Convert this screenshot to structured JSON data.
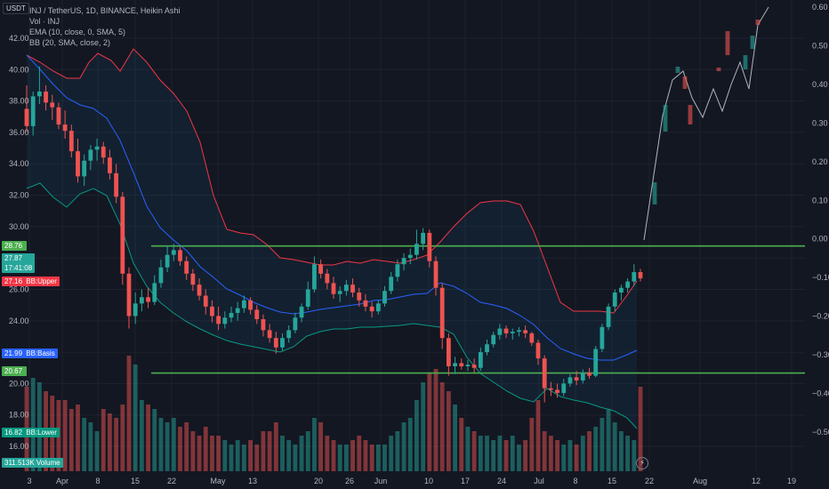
{
  "currency_label": "USDT",
  "legend": {
    "symbol": "INJ / TetherUS, 1D, BINANCE, Heikin Ashi",
    "volume": "Vol · INJ",
    "ema": "EMA (10, close, 0, SMA, 5)",
    "bb": "BB (20, SMA, close, 2)"
  },
  "badges": {
    "price_high": {
      "value": "28.76"
    },
    "price_last": {
      "value": "27.87",
      "sub": "17:41:08"
    },
    "bb_upper": {
      "value": "27.16",
      "label": "BB:Upper"
    },
    "bb_basis": {
      "value": "21.99",
      "label": "BB:Basis"
    },
    "level": {
      "value": "20.67"
    },
    "bb_lower": {
      "value": "16.82",
      "label": "BB:Lower"
    },
    "volume": {
      "value": "311.513K",
      "label": "Volume"
    }
  },
  "colors": {
    "bull": "#26a69a",
    "bear": "#ef5350",
    "bb_upper": "#f23645",
    "bb_lower": "#089981",
    "bb_basis": "#2962ff",
    "support_resistance": "#4caf50",
    "projection": "#b2b5be"
  },
  "chart_data": {
    "type": "candlestick",
    "left_axis": {
      "ticks": [
        "42.00",
        "40.00",
        "38.00",
        "36.00",
        "34.00",
        "32.00",
        "30.00",
        "28.00",
        "26.00",
        "24.00",
        "22.00",
        "20.00",
        "18.00",
        "16.00"
      ],
      "range": [
        15.0,
        43.0
      ]
    },
    "right_axis": {
      "ticks": [
        "0.60",
        "0.50",
        "0.40",
        "0.30",
        "0.20",
        "0.10",
        "0.00",
        "−0.10",
        "−0.20",
        "−0.30",
        "−0.40",
        "−0.50"
      ],
      "range": [
        -0.52,
        0.62
      ]
    },
    "x_ticks": [
      "3",
      "Apr",
      "8",
      "15",
      "22",
      "May",
      "13",
      "20",
      "26",
      "Jun",
      "10",
      "17",
      "24",
      "Jul",
      "8",
      "15",
      "22",
      "Aug",
      "12",
      "19"
    ],
    "horizontal_levels": [
      28.76,
      20.67
    ],
    "candles": [
      [
        37.5,
        39.0,
        36.0,
        36.4
      ],
      [
        36.4,
        38.6,
        35.8,
        38.3
      ],
      [
        38.3,
        40.2,
        37.8,
        38.6
      ],
      [
        38.6,
        39.0,
        37.4,
        37.9
      ],
      [
        37.9,
        38.4,
        36.8,
        37.6
      ],
      [
        37.6,
        37.9,
        36.2,
        36.5
      ],
      [
        36.5,
        37.4,
        35.6,
        36.1
      ],
      [
        36.1,
        36.5,
        34.4,
        34.8
      ],
      [
        34.8,
        35.6,
        32.8,
        33.2
      ],
      [
        33.2,
        34.6,
        32.6,
        34.2
      ],
      [
        34.2,
        35.2,
        33.6,
        34.9
      ],
      [
        34.9,
        35.6,
        34.2,
        35.1
      ],
      [
        35.1,
        35.4,
        34.0,
        34.4
      ],
      [
        34.4,
        34.9,
        33.0,
        33.4
      ],
      [
        33.4,
        34.0,
        31.5,
        31.9
      ],
      [
        31.9,
        32.2,
        26.3,
        27.0
      ],
      [
        27.0,
        27.4,
        23.5,
        24.3
      ],
      [
        24.3,
        25.8,
        23.8,
        25.1
      ],
      [
        25.1,
        26.0,
        24.6,
        25.5
      ],
      [
        25.5,
        26.1,
        24.8,
        25.2
      ],
      [
        25.2,
        26.9,
        25.0,
        26.4
      ],
      [
        26.4,
        27.9,
        26.1,
        27.4
      ],
      [
        27.4,
        28.8,
        27.1,
        28.2
      ],
      [
        28.2,
        28.9,
        27.8,
        28.5
      ],
      [
        28.5,
        28.7,
        27.5,
        27.8
      ],
      [
        27.8,
        28.1,
        26.6,
        27.0
      ],
      [
        27.0,
        27.3,
        25.9,
        26.3
      ],
      [
        26.3,
        26.7,
        25.3,
        25.6
      ],
      [
        25.6,
        26.0,
        24.4,
        24.9
      ],
      [
        24.9,
        25.3,
        23.9,
        24.3
      ],
      [
        24.3,
        24.9,
        23.4,
        23.8
      ],
      [
        23.8,
        24.6,
        23.5,
        24.2
      ],
      [
        24.2,
        24.9,
        23.9,
        24.5
      ],
      [
        24.5,
        25.2,
        24.0,
        24.8
      ],
      [
        24.8,
        25.6,
        24.5,
        25.3
      ],
      [
        25.3,
        25.5,
        24.4,
        24.7
      ],
      [
        24.7,
        25.0,
        23.8,
        24.1
      ],
      [
        24.1,
        24.4,
        23.0,
        23.4
      ],
      [
        23.4,
        23.8,
        22.6,
        22.9
      ],
      [
        22.9,
        23.3,
        21.9,
        22.3
      ],
      [
        22.3,
        23.2,
        22.1,
        22.9
      ],
      [
        22.9,
        23.7,
        22.6,
        23.4
      ],
      [
        23.4,
        24.5,
        23.2,
        24.2
      ],
      [
        24.2,
        25.1,
        23.9,
        24.9
      ],
      [
        24.9,
        26.5,
        24.7,
        26.0
      ],
      [
        26.0,
        28.1,
        25.8,
        27.6
      ],
      [
        27.6,
        27.9,
        26.7,
        27.0
      ],
      [
        27.0,
        27.3,
        26.0,
        26.4
      ],
      [
        26.4,
        26.8,
        25.4,
        25.7
      ],
      [
        25.7,
        26.2,
        25.2,
        25.9
      ],
      [
        25.9,
        26.6,
        25.6,
        26.3
      ],
      [
        26.3,
        26.7,
        25.5,
        25.8
      ],
      [
        25.8,
        26.1,
        24.9,
        25.3
      ],
      [
        25.3,
        25.7,
        24.6,
        24.9
      ],
      [
        24.9,
        25.2,
        24.2,
        24.6
      ],
      [
        24.6,
        25.3,
        24.4,
        25.1
      ],
      [
        25.1,
        26.2,
        24.9,
        25.9
      ],
      [
        25.9,
        27.1,
        25.7,
        26.8
      ],
      [
        26.8,
        27.9,
        26.5,
        27.6
      ],
      [
        27.6,
        28.3,
        27.2,
        28.0
      ],
      [
        28.0,
        28.6,
        27.6,
        28.2
      ],
      [
        28.2,
        29.8,
        27.9,
        28.9
      ],
      [
        28.9,
        29.9,
        28.5,
        29.6
      ],
      [
        29.6,
        29.8,
        27.4,
        27.8
      ],
      [
        27.8,
        28.1,
        25.6,
        26.1
      ],
      [
        26.1,
        26.4,
        22.2,
        22.9
      ],
      [
        22.9,
        23.2,
        20.5,
        21.1
      ],
      [
        21.1,
        21.7,
        20.6,
        21.3
      ],
      [
        21.3,
        21.6,
        20.9,
        21.1
      ],
      [
        21.1,
        21.5,
        20.8,
        21.2
      ],
      [
        21.2,
        21.6,
        20.7,
        21.0
      ],
      [
        21.0,
        22.3,
        20.8,
        22.0
      ],
      [
        22.0,
        22.8,
        21.8,
        22.5
      ],
      [
        22.5,
        23.3,
        22.3,
        23.1
      ],
      [
        23.1,
        23.8,
        22.8,
        23.5
      ],
      [
        23.5,
        23.7,
        22.9,
        23.2
      ],
      [
        23.2,
        23.5,
        22.8,
        23.3
      ],
      [
        23.3,
        23.6,
        23.0,
        23.4
      ],
      [
        23.4,
        23.7,
        22.9,
        23.2
      ],
      [
        23.2,
        23.3,
        22.4,
        22.6
      ],
      [
        22.6,
        22.8,
        21.2,
        21.6
      ],
      [
        21.6,
        21.8,
        18.8,
        19.7
      ],
      [
        19.7,
        20.1,
        19.2,
        19.6
      ],
      [
        19.6,
        20.0,
        19.1,
        19.4
      ],
      [
        19.4,
        20.3,
        19.2,
        20.0
      ],
      [
        20.0,
        20.6,
        19.8,
        20.4
      ],
      [
        20.4,
        20.8,
        19.9,
        20.2
      ],
      [
        20.2,
        20.9,
        20.0,
        20.7
      ],
      [
        20.7,
        21.0,
        20.3,
        20.5
      ],
      [
        20.5,
        22.4,
        20.4,
        22.2
      ],
      [
        22.2,
        23.8,
        22.0,
        23.6
      ],
      [
        23.6,
        25.1,
        23.4,
        24.9
      ],
      [
        24.9,
        26.0,
        24.6,
        25.8
      ],
      [
        25.8,
        26.3,
        25.3,
        26.1
      ],
      [
        26.1,
        26.7,
        25.8,
        26.5
      ],
      [
        26.5,
        27.6,
        26.2,
        27.1
      ],
      [
        27.1,
        27.3,
        26.5,
        26.7
      ]
    ],
    "volume": [
      {
        "value": 0.3,
        "dir": "bear"
      }
    ],
    "projection_line": [
      [
        724,
        270
      ],
      [
        733,
        210
      ],
      [
        745,
        130
      ],
      [
        756,
        90
      ],
      [
        768,
        80
      ],
      [
        778,
        110
      ],
      [
        790,
        132
      ],
      [
        802,
        100
      ],
      [
        812,
        125
      ],
      [
        822,
        95
      ],
      [
        832,
        70
      ],
      [
        842,
        100
      ],
      [
        852,
        28
      ],
      [
        864,
        8
      ]
    ],
    "bb_upper": [
      [
        30,
        62
      ],
      [
        45,
        70
      ],
      [
        60,
        80
      ],
      [
        75,
        88
      ],
      [
        90,
        88
      ],
      [
        100,
        70
      ],
      [
        110,
        60
      ],
      [
        125,
        68
      ],
      [
        135,
        80
      ],
      [
        150,
        55
      ],
      [
        165,
        70
      ],
      [
        180,
        90
      ],
      [
        195,
        105
      ],
      [
        210,
        125
      ],
      [
        225,
        160
      ],
      [
        240,
        220
      ],
      [
        255,
        258
      ],
      [
        270,
        262
      ],
      [
        285,
        264
      ],
      [
        300,
        275
      ],
      [
        315,
        290
      ],
      [
        330,
        292
      ],
      [
        345,
        295
      ],
      [
        360,
        298
      ],
      [
        375,
        298
      ],
      [
        390,
        294
      ],
      [
        405,
        296
      ],
      [
        420,
        292
      ],
      [
        435,
        294
      ],
      [
        450,
        296
      ],
      [
        465,
        292
      ],
      [
        480,
        287
      ],
      [
        495,
        272
      ],
      [
        510,
        255
      ],
      [
        525,
        240
      ],
      [
        540,
        228
      ],
      [
        555,
        226
      ],
      [
        570,
        226
      ],
      [
        585,
        230
      ],
      [
        600,
        260
      ],
      [
        615,
        300
      ],
      [
        630,
        340
      ],
      [
        645,
        350
      ],
      [
        660,
        350
      ],
      [
        675,
        350
      ],
      [
        690,
        352
      ],
      [
        705,
        332
      ],
      [
        716,
        316
      ]
    ],
    "bb_lower": [
      [
        30,
        212
      ],
      [
        45,
        206
      ],
      [
        60,
        222
      ],
      [
        75,
        233
      ],
      [
        90,
        218
      ],
      [
        105,
        212
      ],
      [
        120,
        220
      ],
      [
        135,
        252
      ],
      [
        150,
        296
      ],
      [
        165,
        322
      ],
      [
        180,
        340
      ],
      [
        195,
        352
      ],
      [
        210,
        362
      ],
      [
        225,
        370
      ],
      [
        240,
        377
      ],
      [
        255,
        383
      ],
      [
        270,
        387
      ],
      [
        285,
        390
      ],
      [
        300,
        393
      ],
      [
        315,
        396
      ],
      [
        330,
        390
      ],
      [
        345,
        378
      ],
      [
        360,
        373
      ],
      [
        375,
        370
      ],
      [
        390,
        370
      ],
      [
        405,
        368
      ],
      [
        420,
        368
      ],
      [
        435,
        367
      ],
      [
        450,
        366
      ],
      [
        465,
        364
      ],
      [
        480,
        366
      ],
      [
        495,
        368
      ],
      [
        510,
        376
      ],
      [
        525,
        402
      ],
      [
        540,
        420
      ],
      [
        555,
        430
      ],
      [
        570,
        440
      ],
      [
        585,
        448
      ],
      [
        600,
        452
      ],
      [
        615,
        437
      ],
      [
        630,
        446
      ],
      [
        645,
        450
      ],
      [
        660,
        453
      ],
      [
        675,
        458
      ],
      [
        690,
        462
      ],
      [
        705,
        470
      ],
      [
        716,
        482
      ]
    ],
    "bb_basis": [
      [
        30,
        62
      ],
      [
        45,
        78
      ],
      [
        60,
        95
      ],
      [
        75,
        110
      ],
      [
        90,
        118
      ],
      [
        105,
        122
      ],
      [
        120,
        133
      ],
      [
        135,
        158
      ],
      [
        150,
        194
      ],
      [
        165,
        232
      ],
      [
        180,
        256
      ],
      [
        195,
        270
      ],
      [
        210,
        282
      ],
      [
        225,
        300
      ],
      [
        240,
        312
      ],
      [
        255,
        325
      ],
      [
        270,
        332
      ],
      [
        285,
        340
      ],
      [
        300,
        346
      ],
      [
        315,
        351
      ],
      [
        330,
        353
      ],
      [
        345,
        351
      ],
      [
        360,
        348
      ],
      [
        375,
        346
      ],
      [
        390,
        344
      ],
      [
        405,
        342
      ],
      [
        420,
        338
      ],
      [
        435,
        337
      ],
      [
        450,
        334
      ],
      [
        465,
        331
      ],
      [
        480,
        330
      ],
      [
        495,
        318
      ],
      [
        510,
        322
      ],
      [
        525,
        330
      ],
      [
        540,
        340
      ],
      [
        555,
        343
      ],
      [
        570,
        347
      ],
      [
        585,
        355
      ],
      [
        600,
        365
      ],
      [
        615,
        380
      ],
      [
        630,
        392
      ],
      [
        645,
        398
      ],
      [
        660,
        403
      ],
      [
        675,
        405
      ],
      [
        690,
        405
      ],
      [
        705,
        399
      ],
      [
        716,
        394
      ]
    ]
  }
}
